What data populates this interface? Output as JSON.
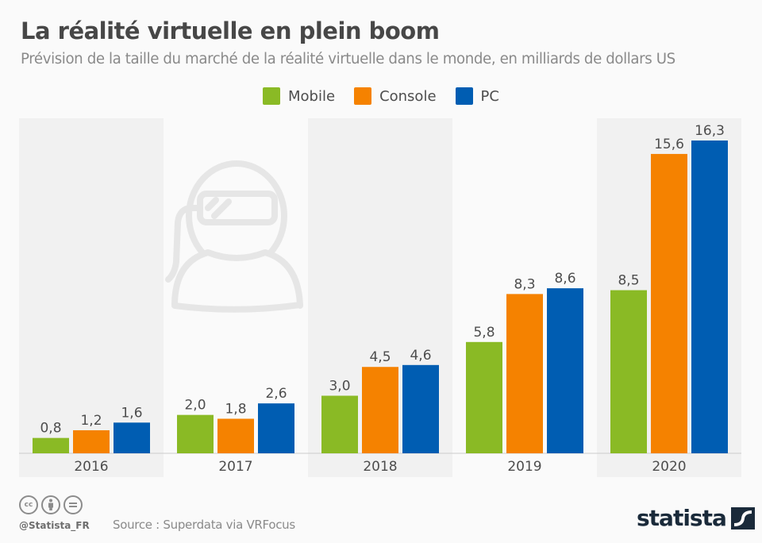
{
  "header": {
    "title": "La réalité virtuelle en plein boom",
    "subtitle": "Prévision de la taille du marché de la réalité virtuelle dans le monde, en milliards de dollars US"
  },
  "legend": [
    {
      "label": "Mobile",
      "color": "#8aba25"
    },
    {
      "label": "Console",
      "color": "#f58200"
    },
    {
      "label": "PC",
      "color": "#005db2"
    }
  ],
  "chart_data": {
    "type": "bar",
    "title": "La réalité virtuelle en plein boom",
    "subtitle": "Prévision de la taille du marché de la réalité virtuelle dans le monde, en milliards de dollars US",
    "xlabel": "",
    "ylabel": "milliards de dollars US",
    "categories": [
      "2016",
      "2017",
      "2018",
      "2019",
      "2020"
    ],
    "series": [
      {
        "name": "Mobile",
        "color": "#8aba25",
        "values": [
          0.8,
          2.0,
          3.0,
          5.8,
          8.5
        ],
        "labels": [
          "0,8",
          "2,0",
          "3,0",
          "5,8",
          "8,5"
        ]
      },
      {
        "name": "Console",
        "color": "#f58200",
        "values": [
          1.2,
          1.8,
          4.5,
          8.3,
          15.6
        ],
        "labels": [
          "1,2",
          "1,8",
          "4,5",
          "8,3",
          "15,6"
        ]
      },
      {
        "name": "PC",
        "color": "#005db2",
        "values": [
          1.6,
          2.6,
          4.6,
          8.6,
          16.3
        ],
        "labels": [
          "1,6",
          "2,6",
          "4,6",
          "8,6",
          "16,3"
        ]
      }
    ],
    "ylim": [
      0,
      16.3
    ],
    "grid": false,
    "legend_position": "top-center",
    "decorative_icon": "vr-headset-person-icon"
  },
  "footer": {
    "license_icons": [
      "cc-icon",
      "attribution-icon",
      "no-derivatives-icon"
    ],
    "cc_text": "cc",
    "handle": "@Statista_FR",
    "source": "Source : Superdata via VRFocus",
    "logo": "statista"
  }
}
